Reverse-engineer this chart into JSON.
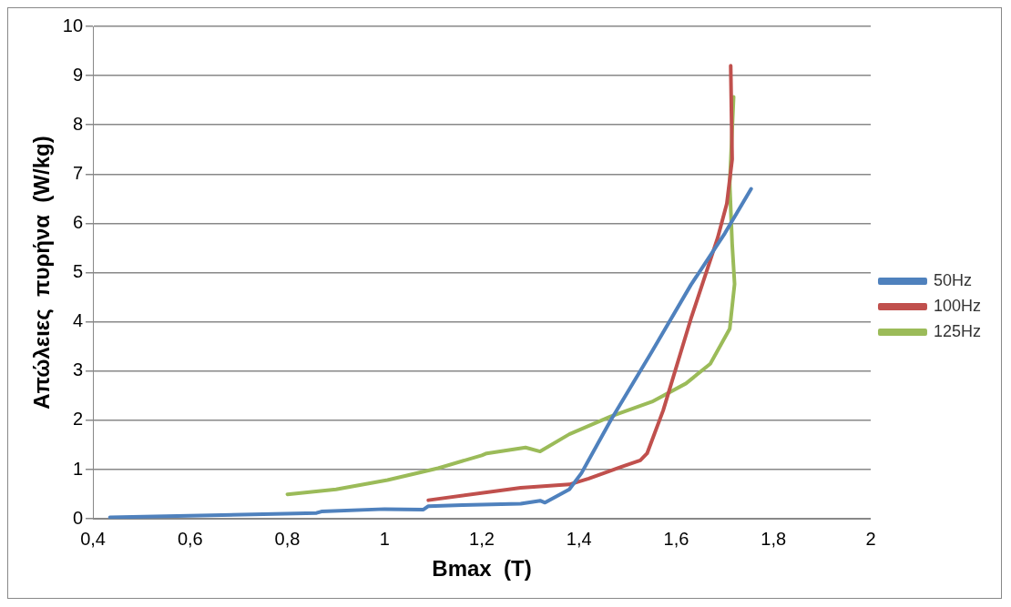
{
  "chart_data": {
    "type": "line",
    "xlabel": "Bmax  (T)",
    "ylabel": "Απώλειες  πυρήνα  (W/kg)",
    "xlim": [
      0.4,
      2
    ],
    "xticks": [
      {
        "value": 0.4,
        "label": "0,4"
      },
      {
        "value": 0.6,
        "label": "0,6"
      },
      {
        "value": 0.8,
        "label": "0,8"
      },
      {
        "value": 1,
        "label": "1"
      },
      {
        "value": 1.2,
        "label": "1,2"
      },
      {
        "value": 1.4,
        "label": "1,4"
      },
      {
        "value": 1.6,
        "label": "1,6"
      },
      {
        "value": 1.8,
        "label": "1,8"
      },
      {
        "value": 2,
        "label": "2"
      }
    ],
    "ylim": [
      0,
      10
    ],
    "yticks": [
      0,
      1,
      2,
      3,
      4,
      5,
      6,
      7,
      8,
      9,
      10
    ],
    "grid": "y",
    "legend": "right",
    "marker": "none",
    "series": [
      {
        "name": "50Hz",
        "color": "#4f81bd",
        "x": [
          0.435,
          0.86,
          0.87,
          1.0,
          1.08,
          1.09,
          1.16,
          1.28,
          1.32,
          1.33,
          1.38,
          1.405,
          1.465,
          1.55,
          1.63,
          1.7,
          1.754
        ],
        "values": [
          0.03,
          0.12,
          0.15,
          0.2,
          0.19,
          0.26,
          0.28,
          0.31,
          0.37,
          0.33,
          0.6,
          0.93,
          2.0,
          3.4,
          4.75,
          5.8,
          6.7
        ]
      },
      {
        "name": "100Hz",
        "color": "#c0504d",
        "x": [
          1.09,
          1.28,
          1.38,
          1.42,
          1.485,
          1.526,
          1.54,
          1.573,
          1.63,
          1.685,
          1.704,
          1.715,
          1.712
        ],
        "values": [
          0.38,
          0.63,
          0.7,
          0.82,
          1.05,
          1.19,
          1.33,
          2.2,
          4.06,
          5.7,
          6.4,
          7.3,
          9.2
        ]
      },
      {
        "name": "125Hz",
        "color": "#9bbb59",
        "x": [
          0.8,
          0.9,
          1.006,
          1.11,
          1.2,
          1.21,
          1.29,
          1.32,
          1.38,
          1.465,
          1.55,
          1.62,
          1.67,
          1.71,
          1.72,
          1.715,
          1.71,
          1.718
        ],
        "values": [
          0.5,
          0.6,
          0.79,
          1.03,
          1.29,
          1.33,
          1.45,
          1.37,
          1.72,
          2.08,
          2.38,
          2.75,
          3.15,
          3.86,
          4.77,
          5.58,
          6.8,
          8.57
        ]
      }
    ]
  }
}
